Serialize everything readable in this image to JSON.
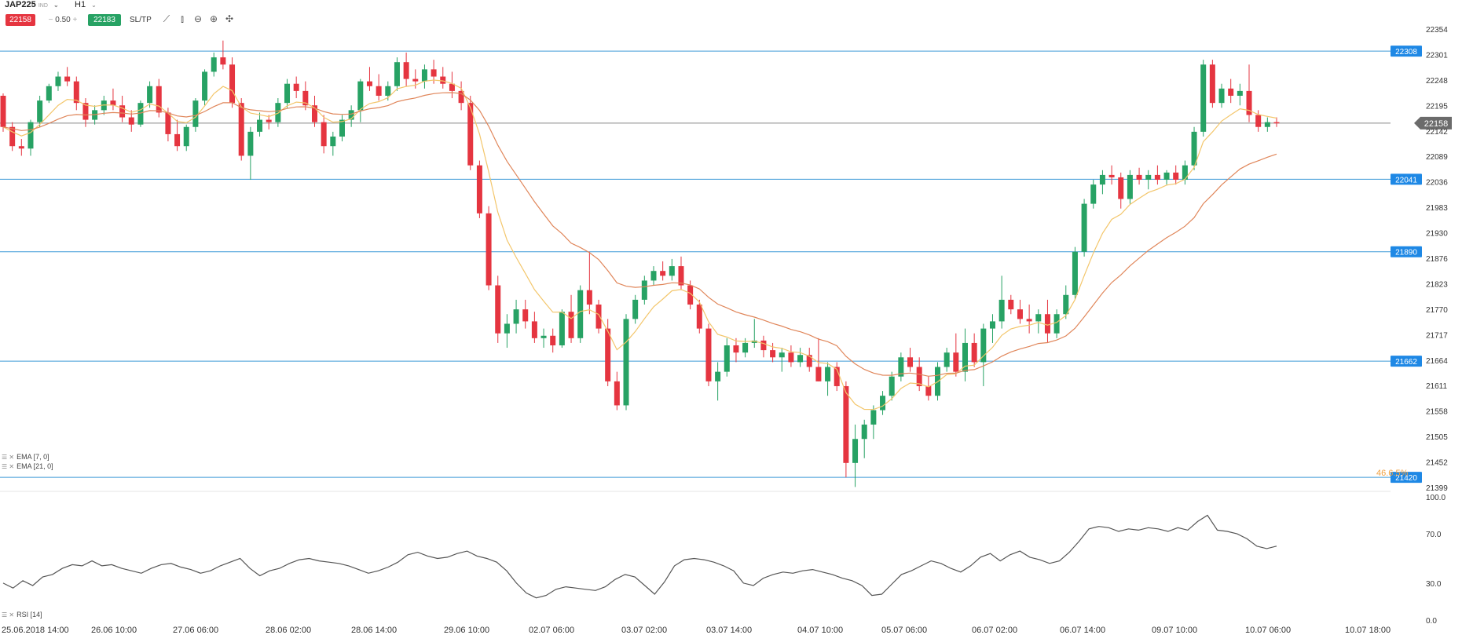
{
  "toolbar": {
    "symbol": "JAP225",
    "symbol_tag": "IND",
    "timeframe": "H1",
    "sell_price": "22158",
    "lot_size": "0.50",
    "lot_minus": "−",
    "lot_plus": "+",
    "buy_price": "22183",
    "sltp_label": "SL/TP",
    "tool_icons": [
      "line-chart-icon",
      "candle-type-icon",
      "zoom-out-icon",
      "zoom-in-icon",
      "crosshair-icon"
    ]
  },
  "indicators": {
    "ema1_label": "EMA [7, 0]",
    "ema2_label": "EMA [21, 0]",
    "rsi_label": "RSI [14]"
  },
  "price_axis_labels": [
    "22354",
    "22301",
    "22248",
    "22195",
    "22142",
    "22089",
    "22036",
    "21983",
    "21930",
    "21876",
    "21823",
    "21770",
    "21717",
    "21664",
    "21611",
    "21558",
    "21505",
    "21452",
    "21399"
  ],
  "rsi_axis_labels": [
    "100.0",
    "70.0",
    "30.0",
    "0.0"
  ],
  "time_axis_labels": [
    "25.06.2018 14:00",
    "26.06 10:00",
    "27.06 06:00",
    "28.06 02:00",
    "28.06 14:00",
    "29.06 10:00",
    "02.07 06:00",
    "03.07 02:00",
    "03.07 14:00",
    "04.07 10:00",
    "05.07 06:00",
    "06.07 02:00",
    "06.07 14:00",
    "09.07 10:00",
    "10.07 06:00",
    "10.07 18:00"
  ],
  "horizontal_levels": [
    "22308",
    "22041",
    "21890",
    "21662",
    "21420"
  ],
  "current_price_tag": "22158",
  "fib_label": "46.6.5%",
  "colors": {
    "up": "#27a264",
    "down": "#e53540",
    "level_line": "#3d9ad8",
    "ema_fast": "#f3c66b",
    "ema_slow": "#e0865a",
    "rsi_line": "#555555",
    "current_line": "#888888"
  },
  "chart_data": [
    {
      "type": "candlestick",
      "title": "JAP225 H1",
      "ylim": [
        21380,
        22380
      ],
      "series": [
        {
          "name": "EMA [7, 0]",
          "color": "#f3c66b"
        },
        {
          "name": "EMA [21, 0]",
          "color": "#e0865a"
        }
      ],
      "levels": [
        22308,
        22041,
        21890,
        21662,
        21420
      ],
      "current": 22158,
      "candles": [
        [
          22215,
          22220,
          22140,
          22150
        ],
        [
          22150,
          22160,
          22100,
          22110
        ],
        [
          22110,
          22125,
          22090,
          22105
        ],
        [
          22105,
          22165,
          22090,
          22160
        ],
        [
          22160,
          22215,
          22150,
          22205
        ],
        [
          22205,
          22240,
          22200,
          22235
        ],
        [
          22235,
          22265,
          22225,
          22255
        ],
        [
          22255,
          22275,
          22235,
          22245
        ],
        [
          22245,
          22255,
          22185,
          22200
        ],
        [
          22200,
          22210,
          22150,
          22165
        ],
        [
          22165,
          22195,
          22155,
          22185
        ],
        [
          22185,
          22215,
          22175,
          22205
        ],
        [
          22205,
          22230,
          22185,
          22195
        ],
        [
          22195,
          22215,
          22160,
          22170
        ],
        [
          22170,
          22185,
          22140,
          22155
        ],
        [
          22155,
          22205,
          22150,
          22200
        ],
        [
          22200,
          22245,
          22190,
          22235
        ],
        [
          22235,
          22250,
          22170,
          22180
        ],
        [
          22180,
          22190,
          22120,
          22135
        ],
        [
          22135,
          22165,
          22100,
          22110
        ],
        [
          22110,
          22155,
          22100,
          22150
        ],
        [
          22150,
          22210,
          22140,
          22205
        ],
        [
          22205,
          22270,
          22195,
          22265
        ],
        [
          22265,
          22305,
          22255,
          22295
        ],
        [
          22295,
          22330,
          22270,
          22280
        ],
        [
          22280,
          22295,
          22190,
          22200
        ],
        [
          22200,
          22210,
          22080,
          22090
        ],
        [
          22090,
          22150,
          22040,
          22140
        ],
        [
          22140,
          22180,
          22130,
          22165
        ],
        [
          22165,
          22175,
          22145,
          22160
        ],
        [
          22160,
          22210,
          22150,
          22200
        ],
        [
          22200,
          22250,
          22190,
          22240
        ],
        [
          22240,
          22255,
          22210,
          22225
        ],
        [
          22225,
          22245,
          22185,
          22195
        ],
        [
          22195,
          22215,
          22150,
          22160
        ],
        [
          22160,
          22175,
          22095,
          22110
        ],
        [
          22110,
          22140,
          22090,
          22130
        ],
        [
          22130,
          22175,
          22120,
          22165
        ],
        [
          22165,
          22195,
          22150,
          22185
        ],
        [
          22185,
          22250,
          22160,
          22245
        ],
        [
          22245,
          22275,
          22225,
          22235
        ],
        [
          22235,
          22260,
          22205,
          22215
        ],
        [
          22215,
          22245,
          22205,
          22235
        ],
        [
          22235,
          22295,
          22225,
          22285
        ],
        [
          22285,
          22305,
          22235,
          22250
        ],
        [
          22250,
          22270,
          22230,
          22245
        ],
        [
          22245,
          22280,
          22230,
          22270
        ],
        [
          22270,
          22290,
          22240,
          22255
        ],
        [
          22255,
          22275,
          22230,
          22240
        ],
        [
          22240,
          22265,
          22210,
          22225
        ],
        [
          22225,
          22245,
          22185,
          22200
        ],
        [
          22200,
          22215,
          22060,
          22070
        ],
        [
          22070,
          22080,
          21960,
          21970
        ],
        [
          21970,
          21985,
          21810,
          21820
        ],
        [
          21820,
          21840,
          21700,
          21720
        ],
        [
          21720,
          21760,
          21690,
          21740
        ],
        [
          21740,
          21790,
          21720,
          21770
        ],
        [
          21770,
          21790,
          21730,
          21745
        ],
        [
          21745,
          21765,
          21700,
          21710
        ],
        [
          21710,
          21730,
          21690,
          21715
        ],
        [
          21715,
          21730,
          21680,
          21695
        ],
        [
          21695,
          21770,
          21690,
          21765
        ],
        [
          21765,
          21800,
          21700,
          21710
        ],
        [
          21710,
          21820,
          21700,
          21810
        ],
        [
          21810,
          21890,
          21760,
          21780
        ],
        [
          21780,
          21790,
          21720,
          21730
        ],
        [
          21730,
          21750,
          21610,
          21620
        ],
        [
          21620,
          21640,
          21560,
          21570
        ],
        [
          21570,
          21760,
          21560,
          21750
        ],
        [
          21750,
          21800,
          21740,
          21790
        ],
        [
          21790,
          21840,
          21780,
          21830
        ],
        [
          21830,
          21860,
          21820,
          21850
        ],
        [
          21850,
          21870,
          21830,
          21840
        ],
        [
          21840,
          21875,
          21830,
          21860
        ],
        [
          21860,
          21880,
          21810,
          21820
        ],
        [
          21820,
          21830,
          21770,
          21780
        ],
        [
          21780,
          21790,
          21720,
          21730
        ],
        [
          21730,
          21740,
          21610,
          21620
        ],
        [
          21620,
          21660,
          21580,
          21640
        ],
        [
          21640,
          21710,
          21630,
          21695
        ],
        [
          21695,
          21710,
          21660,
          21680
        ],
        [
          21680,
          21710,
          21670,
          21700
        ],
        [
          21700,
          21750,
          21690,
          21705
        ],
        [
          21705,
          21715,
          21670,
          21685
        ],
        [
          21685,
          21700,
          21660,
          21670
        ],
        [
          21670,
          21690,
          21640,
          21680
        ],
        [
          21680,
          21695,
          21650,
          21660
        ],
        [
          21660,
          21690,
          21650,
          21675
        ],
        [
          21675,
          21690,
          21640,
          21650
        ],
        [
          21650,
          21710,
          21620,
          21620
        ],
        [
          21620,
          21660,
          21590,
          21650
        ],
        [
          21650,
          21660,
          21600,
          21610
        ],
        [
          21610,
          21620,
          21420,
          21450
        ],
        [
          21450,
          21530,
          21400,
          21500
        ],
        [
          21500,
          21540,
          21460,
          21530
        ],
        [
          21530,
          21570,
          21500,
          21560
        ],
        [
          21560,
          21600,
          21550,
          21590
        ],
        [
          21590,
          21640,
          21580,
          21630
        ],
        [
          21630,
          21680,
          21620,
          21670
        ],
        [
          21670,
          21690,
          21640,
          21650
        ],
        [
          21650,
          21670,
          21600,
          21610
        ],
        [
          21610,
          21630,
          21580,
          21590
        ],
        [
          21590,
          21660,
          21580,
          21650
        ],
        [
          21650,
          21690,
          21640,
          21680
        ],
        [
          21680,
          21720,
          21630,
          21640
        ],
        [
          21640,
          21730,
          21620,
          21700
        ],
        [
          21700,
          21720,
          21650,
          21660
        ],
        [
          21660,
          21740,
          21610,
          21730
        ],
        [
          21730,
          21760,
          21700,
          21745
        ],
        [
          21745,
          21840,
          21730,
          21790
        ],
        [
          21790,
          21800,
          21760,
          21770
        ],
        [
          21770,
          21790,
          21740,
          21750
        ],
        [
          21750,
          21780,
          21720,
          21745
        ],
        [
          21745,
          21770,
          21720,
          21760
        ],
        [
          21760,
          21790,
          21700,
          21720
        ],
        [
          21720,
          21770,
          21710,
          21760
        ],
        [
          21760,
          21820,
          21750,
          21800
        ],
        [
          21800,
          21900,
          21790,
          21890
        ],
        [
          21890,
          22000,
          21880,
          21990
        ],
        [
          21990,
          22040,
          21980,
          22030
        ],
        [
          22030,
          22060,
          22010,
          22050
        ],
        [
          22050,
          22070,
          22030,
          22045
        ],
        [
          22045,
          22055,
          21980,
          22000
        ],
        [
          22000,
          22060,
          21990,
          22050
        ],
        [
          22050,
          22065,
          22030,
          22040
        ],
        [
          22040,
          22060,
          22020,
          22050
        ],
        [
          22050,
          22070,
          22030,
          22040
        ],
        [
          22040,
          22060,
          22030,
          22055
        ],
        [
          22055,
          22070,
          22030,
          22040
        ],
        [
          22040,
          22080,
          22030,
          22070
        ],
        [
          22070,
          22150,
          22060,
          22140
        ],
        [
          22140,
          22290,
          22130,
          22280
        ],
        [
          22280,
          22290,
          22190,
          22200
        ],
        [
          22200,
          22240,
          22190,
          22230
        ],
        [
          22230,
          22250,
          22200,
          22215
        ],
        [
          22215,
          22240,
          22195,
          22225
        ],
        [
          22225,
          22280,
          22160,
          22175
        ],
        [
          22175,
          22185,
          22140,
          22150
        ],
        [
          22150,
          22170,
          22140,
          22160
        ],
        [
          22160,
          22170,
          22150,
          22158
        ]
      ]
    },
    {
      "type": "line",
      "title": "RSI [14]",
      "ylim": [
        0,
        100
      ],
      "values": [
        30,
        26,
        32,
        28,
        35,
        37,
        42,
        45,
        44,
        48,
        44,
        45,
        42,
        40,
        38,
        42,
        45,
        46,
        43,
        41,
        38,
        40,
        44,
        47,
        50,
        42,
        36,
        40,
        42,
        46,
        49,
        50,
        48,
        47,
        46,
        44,
        41,
        38,
        40,
        43,
        47,
        53,
        55,
        52,
        50,
        51,
        54,
        56,
        52,
        50,
        47,
        40,
        30,
        22,
        18,
        20,
        25,
        27,
        26,
        25,
        24,
        27,
        33,
        37,
        35,
        28,
        21,
        31,
        44,
        49,
        50,
        49,
        47,
        44,
        40,
        30,
        28,
        34,
        37,
        39,
        38,
        40,
        41,
        39,
        37,
        34,
        32,
        28,
        20,
        21,
        29,
        37,
        40,
        44,
        48,
        46,
        42,
        39,
        44,
        51,
        54,
        48,
        53,
        56,
        51,
        49,
        46,
        48,
        55,
        64,
        74,
        76,
        75,
        72,
        74,
        73,
        75,
        74,
        72,
        75,
        73,
        80,
        85,
        73,
        72,
        70,
        66,
        60,
        58,
        60
      ]
    }
  ]
}
